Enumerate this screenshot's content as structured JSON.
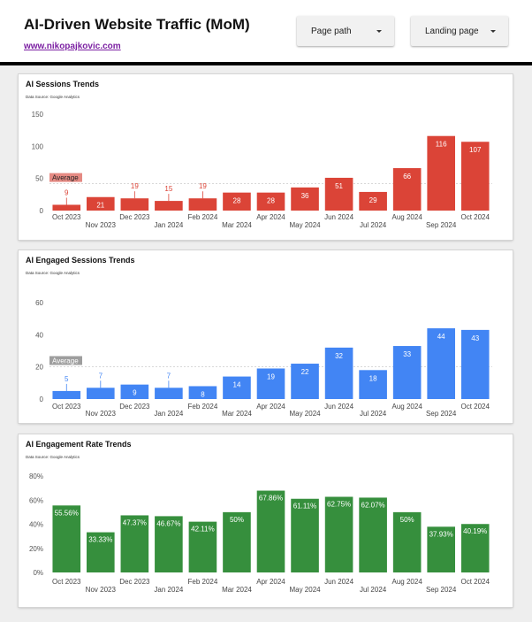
{
  "header": {
    "title": "AI-Driven Website Traffic (MoM)",
    "link": "www.nikopajkovic.com",
    "filters": [
      {
        "label": "Page path"
      },
      {
        "label": "Landing page"
      }
    ]
  },
  "colors": {
    "sessions": "#db4437",
    "engaged": "#4285f4",
    "rate": "#368f3d",
    "average_label_red": "#e58a83",
    "average_label_grey": "#9e9e9e"
  },
  "chart_data": [
    {
      "type": "bar",
      "title": "AI Sessions Trends",
      "subtitle": "Data Source: Google Analytics",
      "categories": [
        "Oct 2023",
        "Nov 2023",
        "Dec 2023",
        "Jan 2024",
        "Feb 2024",
        "Mar 2024",
        "Apr 2024",
        "May 2024",
        "Jun 2024",
        "Jul 2024",
        "Aug 2024",
        "Sep 2024",
        "Oct 2024"
      ],
      "values": [
        9,
        21,
        19,
        15,
        19,
        28,
        28,
        36,
        51,
        29,
        66,
        116,
        107
      ],
      "data_labels": [
        "9",
        "21",
        "19",
        "15",
        "19",
        "28",
        "28",
        "36",
        "51",
        "29",
        "66",
        "116",
        "107"
      ],
      "yticks": [
        "150",
        "100",
        "50",
        "0"
      ],
      "ytick_values": [
        150,
        100,
        50,
        0
      ],
      "ylim": [
        0,
        150
      ],
      "reference_line": {
        "label": "Average",
        "value": 41.8
      },
      "grid": false
    },
    {
      "type": "bar",
      "title": "AI Engaged Sessions Trends",
      "subtitle": "Data Source: Google Analytics",
      "categories": [
        "Oct 2023",
        "Nov 2023",
        "Dec 2023",
        "Jan 2024",
        "Feb 2024",
        "Mar 2024",
        "Apr 2024",
        "May 2024",
        "Jun 2024",
        "Jul 2024",
        "Aug 2024",
        "Sep 2024",
        "Oct 2024"
      ],
      "values": [
        5,
        7,
        9,
        7,
        8,
        14,
        19,
        22,
        32,
        18,
        33,
        44,
        43
      ],
      "data_labels": [
        "5",
        "7",
        "9",
        "7",
        "8",
        "14",
        "19",
        "22",
        "32",
        "18",
        "33",
        "44",
        "43"
      ],
      "yticks": [
        "60",
        "40",
        "20",
        "0"
      ],
      "ytick_values": [
        60,
        40,
        20,
        0
      ],
      "ylim": [
        0,
        60
      ],
      "reference_line": {
        "label": "Average",
        "value": 20.1
      },
      "grid": false
    },
    {
      "type": "bar",
      "title": "AI Engagement Rate Trends",
      "subtitle": "Data Source: Google Analytics",
      "categories": [
        "Oct 2023",
        "Nov 2023",
        "Dec 2023",
        "Jan 2024",
        "Feb 2024",
        "Mar 2024",
        "Apr 2024",
        "May 2024",
        "Jun 2024",
        "Jul 2024",
        "Aug 2024",
        "Sep 2024",
        "Oct 2024"
      ],
      "values": [
        55.56,
        33.33,
        47.37,
        46.67,
        42.11,
        50,
        67.86,
        61.11,
        62.75,
        62.07,
        50,
        37.93,
        40.19
      ],
      "data_labels": [
        "55.56%",
        "33.33%",
        "47.37%",
        "46.67%",
        "42.11%",
        "50%",
        "67.86%",
        "61.11%",
        "62.75%",
        "62.07%",
        "50%",
        "37.93%",
        "40.19%"
      ],
      "yticks": [
        "80%",
        "60%",
        "40%",
        "20%",
        "0%"
      ],
      "ytick_values": [
        80,
        60,
        40,
        20,
        0
      ],
      "ylim": [
        0,
        80
      ],
      "grid": false
    }
  ]
}
